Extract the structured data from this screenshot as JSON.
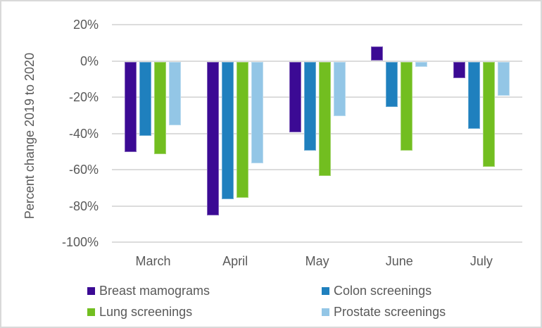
{
  "figure": {
    "background": "#ffffff",
    "border_color": "#d9d9d9",
    "text_color": "#595959",
    "gridline_color": "#dcdcdc"
  },
  "chart_data": {
    "type": "bar",
    "title": "",
    "xlabel": "",
    "ylabel": "Percent change 2019 to 2020",
    "categories": [
      "March",
      "April",
      "May",
      "June",
      "July"
    ],
    "series": [
      {
        "name": "Breast mamograms",
        "color": "#3b0a94",
        "values": [
          -50,
          -85,
          -39,
          8,
          -9
        ]
      },
      {
        "name": "Colon screenings",
        "color": "#1f80be",
        "values": [
          -41,
          -76,
          -49,
          -25,
          -37
        ]
      },
      {
        "name": "Lung screenings",
        "color": "#72be20",
        "values": [
          -51,
          -75,
          -63,
          -49,
          -58
        ]
      },
      {
        "name": "Prostate screenings",
        "color": "#93c6e6",
        "values": [
          -35,
          -56,
          -30,
          -3,
          -19
        ]
      }
    ],
    "ylim": [
      -100,
      20
    ],
    "yticks": [
      20,
      0,
      -20,
      -40,
      -60,
      -80,
      -100
    ],
    "ytick_labels": [
      "20%",
      "0%",
      "-20%",
      "-40%",
      "-60%",
      "-80%",
      "-100%"
    ],
    "grid": true,
    "legend_position": "bottom-two-columns",
    "legend_layout": {
      "column_lefts": [
        122,
        455
      ],
      "row_tops": [
        400,
        430
      ],
      "order": [
        [
          0,
          1
        ],
        [
          2,
          3
        ]
      ]
    }
  }
}
